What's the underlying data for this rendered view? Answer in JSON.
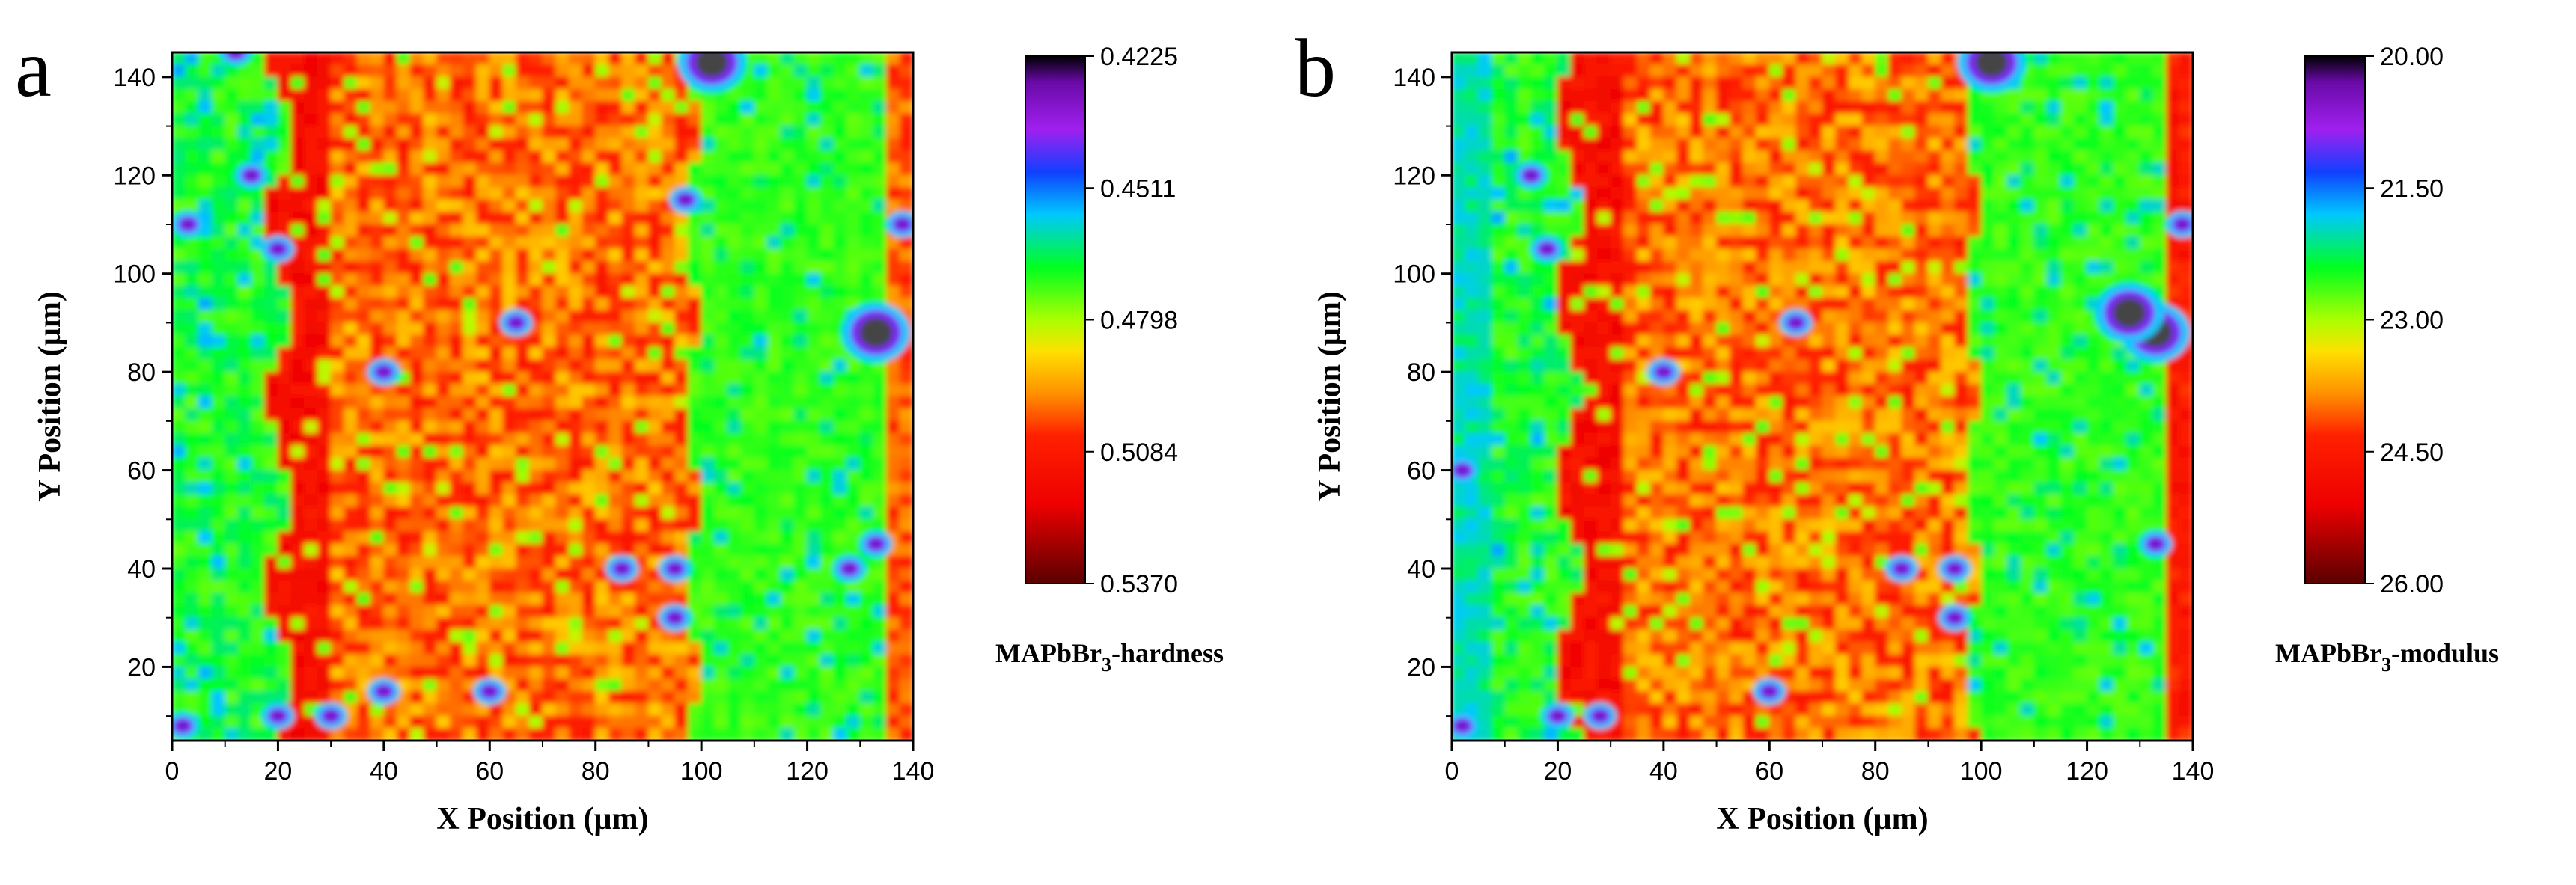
{
  "chart_data": [
    {
      "type": "heatmap",
      "panel_label": "a",
      "xlabel": "X Position (µm)",
      "ylabel": "Y Position (µm)",
      "xlim": [
        0,
        140
      ],
      "ylim": [
        5,
        145
      ],
      "x_ticks": [
        "0",
        "20",
        "40",
        "60",
        "80",
        "100",
        "120",
        "140"
      ],
      "y_ticks": [
        "20",
        "40",
        "60",
        "80",
        "100",
        "120",
        "140"
      ],
      "colorbar": {
        "title_main": "MAPbBr",
        "title_sub": "3",
        "title_rest": "-hardness",
        "ticks": [
          "0.4225",
          "0.4511",
          "0.4798",
          "0.5084",
          "0.5370"
        ],
        "range": [
          0.4225,
          0.537
        ]
      },
      "regions": [
        {
          "x_range": [
            0,
            20
          ],
          "value_level": "low (0.45–0.47)"
        },
        {
          "x_range": [
            20,
            98
          ],
          "value_level": "high (0.48–0.53)"
        },
        {
          "x_range": [
            98,
            140
          ],
          "value_level": "low (0.46–0.47)"
        }
      ]
    },
    {
      "type": "heatmap",
      "panel_label": "b",
      "xlabel": "X Position (µm)",
      "ylabel": "Y Position (µm)",
      "xlim": [
        0,
        140
      ],
      "ylim": [
        5,
        145
      ],
      "x_ticks": [
        "0",
        "20",
        "40",
        "60",
        "80",
        "100",
        "120",
        "140"
      ],
      "y_ticks": [
        "20",
        "40",
        "60",
        "80",
        "100",
        "120",
        "140"
      ],
      "colorbar": {
        "title_main": "MAPbBr",
        "title_sub": "3",
        "title_rest": "-modulus",
        "ticks": [
          "20.00",
          "21.50",
          "23.00",
          "24.50",
          "26.00"
        ],
        "range": [
          20.0,
          26.0
        ]
      },
      "regions": [
        {
          "x_range": [
            0,
            22
          ],
          "value_level": "low (21.5–22.5)"
        },
        {
          "x_range": [
            22,
            98
          ],
          "value_level": "high (23.5–25.5)"
        },
        {
          "x_range": [
            98,
            140
          ],
          "value_level": "low (21.5–22.5)"
        }
      ]
    }
  ]
}
